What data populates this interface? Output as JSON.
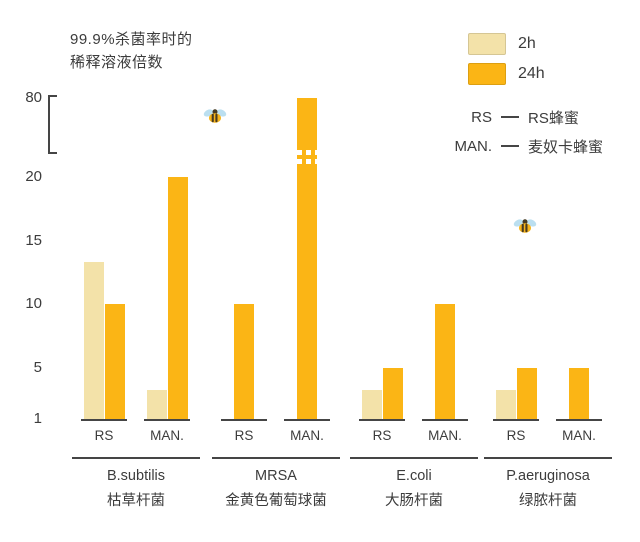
{
  "title": {
    "line1": "99.9%杀菌率时的",
    "line2": "稀释溶液倍数"
  },
  "legend": {
    "series": [
      {
        "label": "2h",
        "color": "#F3E2A9"
      },
      {
        "label": "24h",
        "color": "#FBB515"
      }
    ],
    "abbrev": [
      {
        "abbr": "RS",
        "label": "RS蜂蜜"
      },
      {
        "abbr": "MAN.",
        "label": "麦奴卡蜂蜜"
      }
    ]
  },
  "colors": {
    "bar_2h": "#F3E2A9",
    "bar_24h": "#FBB515",
    "axis": "#454545",
    "text": "#3C3C3C",
    "bee_wing": "#BBDFF0",
    "bee_body": "#F5B31A",
    "bee_dark": "#473A22"
  },
  "chart_data": {
    "type": "bar",
    "title": "99.9%杀菌率时的稀释溶液倍数",
    "y_ticks": [
      1,
      5,
      10,
      15,
      20,
      80
    ],
    "axis_break_between": [
      20,
      80
    ],
    "grid": false,
    "legend_position": "top-right",
    "series_names": [
      "2h",
      "24h"
    ],
    "groups": [
      {
        "name_en": "B.subtilis",
        "name_zh": "枯草杆菌",
        "pairs": [
          {
            "label": "RS",
            "values": [
              13.3,
              10
            ]
          },
          {
            "label": "MAN.",
            "values": [
              3.3,
              20
            ]
          }
        ]
      },
      {
        "name_en": "MRSA",
        "name_zh": "金黄色葡萄球菌",
        "pairs": [
          {
            "label": "RS",
            "values": [
              1,
              10
            ]
          },
          {
            "label": "MAN.",
            "values": [
              1,
              80
            ],
            "bar_break": true
          }
        ]
      },
      {
        "name_en": "E.coli",
        "name_zh": "大肠杆菌",
        "pairs": [
          {
            "label": "RS",
            "values": [
              3.3,
              5
            ]
          },
          {
            "label": "MAN.",
            "values": [
              1,
              10
            ]
          }
        ]
      },
      {
        "name_en": "P.aeruginosa",
        "name_zh": "绿脓杆菌",
        "pairs": [
          {
            "label": "RS",
            "values": [
              3.3,
              5
            ]
          },
          {
            "label": "MAN.",
            "values": [
              1,
              5
            ]
          }
        ]
      }
    ]
  }
}
